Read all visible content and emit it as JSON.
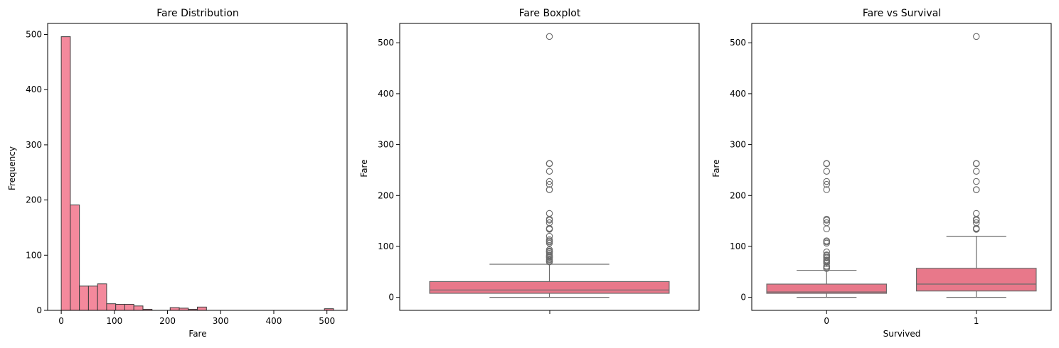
{
  "chart_data": [
    {
      "type": "bar",
      "title": "Fare Distribution",
      "xlabel": "Fare",
      "ylabel": "Frequency",
      "xlim": [
        -25.6,
        537.9
      ],
      "ylim": [
        0,
        520
      ],
      "xticks": [
        0,
        100,
        200,
        300,
        400,
        500
      ],
      "yticks": [
        0,
        100,
        200,
        300,
        400,
        500
      ],
      "bin_width": 17.08,
      "bins_start": [
        0,
        17.08,
        34.16,
        51.24,
        68.32,
        85.4,
        102.48,
        119.56,
        136.64,
        153.72,
        170.8,
        187.88,
        204.96,
        222.04,
        239.12,
        256.2,
        273.28,
        290.36,
        307.44,
        324.52,
        341.6,
        358.68,
        375.76,
        392.84,
        409.92,
        427.0,
        444.08,
        461.16,
        478.24,
        495.32
      ],
      "values": [
        496,
        191,
        44,
        44,
        48,
        12,
        11,
        11,
        8,
        2,
        0,
        0,
        5,
        4,
        2,
        6,
        0,
        0,
        0,
        0,
        0,
        0,
        0,
        0,
        0,
        0,
        0,
        0,
        0,
        3
      ],
      "colors": {
        "bar": "#f4899c",
        "edge": "#3d3d3d"
      }
    },
    {
      "type": "box",
      "title": "Fare Boxplot",
      "xlabel": "",
      "ylabel": "Fare",
      "ylim": [
        -25.6,
        538
      ],
      "yticks": [
        0,
        100,
        200,
        300,
        400,
        500
      ],
      "boxes": [
        {
          "label": "",
          "whisker_low": 0,
          "q1": 7.9,
          "median": 14.45,
          "q3": 31.0,
          "whisker_high": 65.0,
          "outliers": [
            69.55,
            71.0,
            73.5,
            75.25,
            77.96,
            79.2,
            79.65,
            81.86,
            83.16,
            86.5,
            89.1,
            90.0,
            91.08,
            93.5,
            106.43,
            108.9,
            110.88,
            113.28,
            120.0,
            133.65,
            134.5,
            135.63,
            146.52,
            151.55,
            153.46,
            164.87,
            211.34,
            211.5,
            221.78,
            227.53,
            247.52,
            262.38,
            263.0,
            512.33
          ]
        }
      ],
      "colors": {
        "box": "#e8788a",
        "line": "#6b6b6b"
      }
    },
    {
      "type": "box",
      "title": "Fare vs Survival",
      "xlabel": "Survived",
      "ylabel": "Fare",
      "ylim": [
        -25.6,
        538
      ],
      "yticks": [
        0,
        100,
        200,
        300,
        400,
        500
      ],
      "categories": [
        "0",
        "1"
      ],
      "boxes": [
        {
          "label": "0",
          "whisker_low": 0,
          "q1": 7.85,
          "median": 10.5,
          "q3": 26.0,
          "whisker_high": 53.1,
          "outliers": [
            56.5,
            59.4,
            61.2,
            66.6,
            69.55,
            71.28,
            73.5,
            77.29,
            79.2,
            82.17,
            83.47,
            89.1,
            106.43,
            108.9,
            110.88,
            134.5,
            146.52,
            151.55,
            153.46,
            211.5,
            221.78,
            227.53,
            247.52,
            262.38,
            263.0
          ]
        },
        {
          "label": "1",
          "whisker_low": 0,
          "q1": 12.47,
          "median": 26.0,
          "q3": 57.0,
          "whisker_high": 120.0,
          "outliers": [
            133.65,
            134.5,
            135.63,
            146.52,
            151.55,
            153.46,
            164.87,
            211.34,
            211.5,
            227.53,
            247.52,
            262.38,
            263.0,
            512.33
          ]
        }
      ],
      "colors": {
        "box": "#e8788a",
        "line": "#6b6b6b"
      }
    }
  ]
}
